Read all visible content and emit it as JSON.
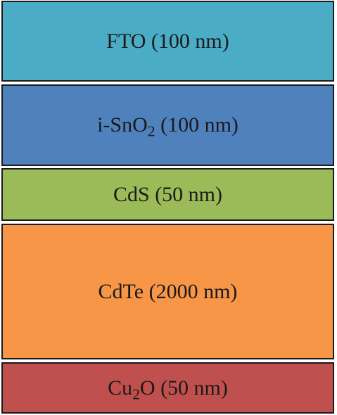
{
  "layers": [
    {
      "pre": "FTO",
      "sub": "",
      "post": " (100 nm)",
      "color": "#4bacc6"
    },
    {
      "pre": "i-SnO",
      "sub": "2",
      "post": " (100 nm)",
      "color": "#4f81bd"
    },
    {
      "pre": "CdS",
      "sub": "",
      "post": " (50 nm)",
      "color": "#9bbb59"
    },
    {
      "pre": "CdTe",
      "sub": "",
      "post": " (2000 nm)",
      "color": "#f79646"
    },
    {
      "pre": "Cu",
      "sub": "2",
      "post": "O (50 nm)",
      "color": "#c0504d"
    }
  ]
}
